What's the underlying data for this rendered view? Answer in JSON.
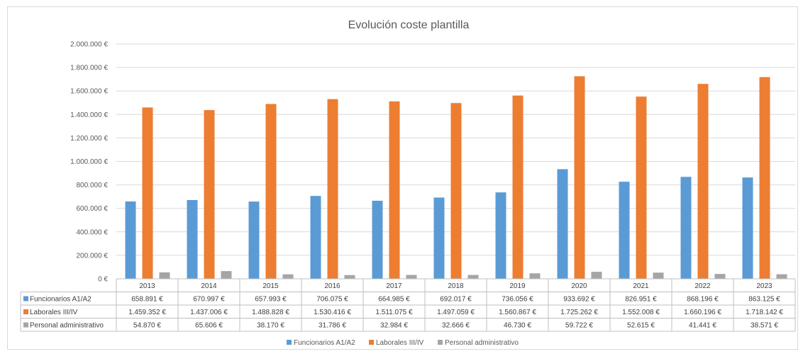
{
  "chart_data": {
    "type": "bar",
    "title": "Evolución coste plantilla",
    "categories": [
      "2013",
      "2014",
      "2015",
      "2016",
      "2017",
      "2018",
      "2019",
      "2020",
      "2021",
      "2022",
      "2023"
    ],
    "ylim": [
      0,
      2000000
    ],
    "yticks": [
      0,
      200000,
      400000,
      600000,
      800000,
      1000000,
      1200000,
      1400000,
      1600000,
      1800000,
      2000000
    ],
    "ytick_labels": [
      "0 €",
      "200.000 €",
      "400.000 €",
      "600.000 €",
      "800.000 €",
      "1.000.000 €",
      "1.200.000 €",
      "1.400.000 €",
      "1.600.000 €",
      "1.800.000 €",
      "2.000.000 €"
    ],
    "grid": true,
    "legend_position": "bottom",
    "series": [
      {
        "name": "Funcionarios A1/A2",
        "color": "#5b9bd5",
        "values": [
          658891,
          670997,
          657993,
          706075,
          664985,
          692017,
          736056,
          933692,
          826951,
          868196,
          863125
        ],
        "labels": [
          "658.891 €",
          "670.997 €",
          "657.993 €",
          "706.075 €",
          "664.985 €",
          "692.017 €",
          "736.056 €",
          "933.692 €",
          "826.951 €",
          "868.196 €",
          "863.125 €"
        ]
      },
      {
        "name": "Laborales III/IV",
        "color": "#ed7d31",
        "values": [
          1459352,
          1437006,
          1488828,
          1530416,
          1511075,
          1497059,
          1560867,
          1725262,
          1552008,
          1660196,
          1718142
        ],
        "labels": [
          "1.459.352 €",
          "1.437.006 €",
          "1.488.828 €",
          "1.530.416 €",
          "1.511.075 €",
          "1.497.059 €",
          "1.560.867 €",
          "1.725.262 €",
          "1.552.008 €",
          "1.660.196 €",
          "1.718.142 €"
        ]
      },
      {
        "name": "Personal administrativo",
        "color": "#a5a5a5",
        "values": [
          54870,
          65606,
          38170,
          31786,
          32984,
          32666,
          46730,
          59722,
          52615,
          41441,
          38571
        ],
        "labels": [
          "54.870 €",
          "65.606 €",
          "38.170 €",
          "31.786 €",
          "32.984 €",
          "32.666 €",
          "46.730 €",
          "59.722 €",
          "52.615 €",
          "41.441 €",
          "38.571 €"
        ]
      }
    ]
  }
}
